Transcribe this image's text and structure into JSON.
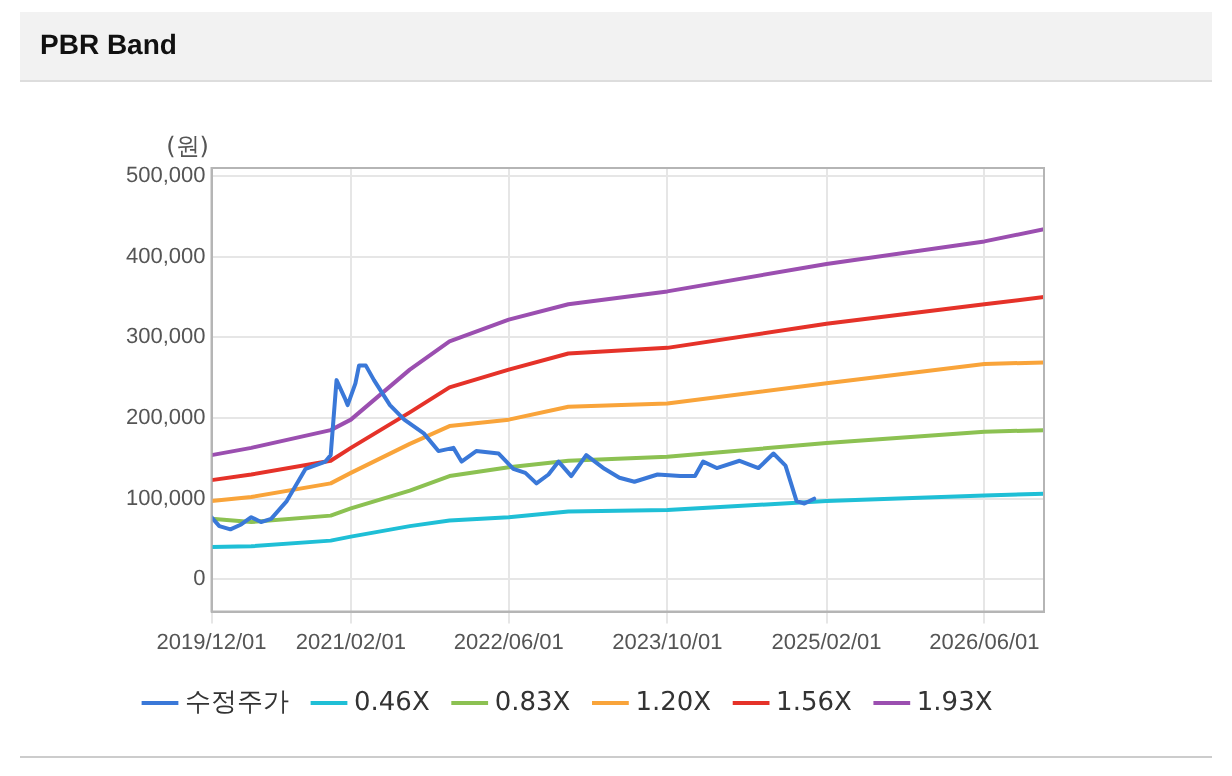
{
  "chart_data": {
    "type": "line",
    "title": "PBR Band",
    "ylabel": "(원)",
    "marker": "none",
    "line_style": "solid",
    "grid": true,
    "legend": "bottom",
    "x": [
      "2019-12-01",
      "2020-04-01",
      "2020-12-01",
      "2021-02-01",
      "2021-08-01",
      "2021-12-01",
      "2022-06-01",
      "2022-12-01",
      "2023-10-01",
      "2025-02-01",
      "2026-06-01",
      "2026-12-01"
    ],
    "xlim": [
      "2019-12-01",
      "2026-12-01"
    ],
    "xticks": [
      {
        "value": "2019-12-01",
        "label": "2019/12/01"
      },
      {
        "value": "2021-02-01",
        "label": "2021/02/01"
      },
      {
        "value": "2022-06-01",
        "label": "2022/06/01"
      },
      {
        "value": "2023-10-01",
        "label": "2023/10/01"
      },
      {
        "value": "2025-02-01",
        "label": "2025/02/01"
      },
      {
        "value": "2026-06-01",
        "label": "2026/06/01"
      }
    ],
    "ylim": [
      -40000,
      510000
    ],
    "yticks": [
      {
        "value": 0,
        "label": "0"
      },
      {
        "value": 100000,
        "label": "100,000"
      },
      {
        "value": 200000,
        "label": "200,000"
      },
      {
        "value": 300000,
        "label": "300,000"
      },
      {
        "value": 400000,
        "label": "400,000"
      },
      {
        "value": 500000,
        "label": "500,000"
      }
    ],
    "series": [
      {
        "name": "수정주가",
        "color": "#3a78d8",
        "x": [
          "2019-12-01",
          "2019-12-25",
          "2020-01-28",
          "2020-03-01",
          "2020-04-01",
          "2020-05-01",
          "2020-06-01",
          "2020-07-19",
          "2020-09-15",
          "2020-11-15",
          "2020-12-01",
          "2020-12-19",
          "2021-01-13",
          "2021-01-22",
          "2021-02-15",
          "2021-02-26",
          "2021-03-19",
          "2021-04-13",
          "2021-06-01",
          "2021-07-15",
          "2021-09-13",
          "2021-10-28",
          "2021-12-13",
          "2022-01-07",
          "2022-02-21",
          "2022-05-01",
          "2022-06-15",
          "2022-07-22",
          "2022-08-25",
          "2022-10-01",
          "2022-11-01",
          "2022-12-10",
          "2023-01-25",
          "2023-03-22",
          "2023-05-07",
          "2023-06-22",
          "2023-09-01",
          "2023-11-10",
          "2023-12-25",
          "2024-01-19",
          "2024-03-01",
          "2024-05-10",
          "2024-07-07",
          "2024-08-22",
          "2024-09-28",
          "2024-11-01",
          "2024-11-25",
          "2024-12-25"
        ],
        "values": [
          77000,
          66000,
          62000,
          68000,
          77000,
          71000,
          75000,
          97000,
          137000,
          146000,
          154000,
          247000,
          225000,
          216000,
          243000,
          265000,
          265000,
          247000,
          216000,
          198000,
          181000,
          159000,
          163000,
          146000,
          159000,
          156000,
          137000,
          132000,
          119000,
          130000,
          146000,
          128000,
          154000,
          137000,
          126000,
          121000,
          130000,
          128000,
          128000,
          146000,
          138000,
          147000,
          138000,
          156000,
          141000,
          97000,
          94000,
          100000
        ]
      },
      {
        "name": "0.46X",
        "color": "#1fbfd6",
        "values": [
          40000,
          41000,
          48000,
          53000,
          66000,
          73000,
          77000,
          84000,
          86000,
          97000,
          104000,
          106000
        ]
      },
      {
        "name": "0.83X",
        "color": "#8cc152",
        "values": [
          75000,
          71000,
          79000,
          88000,
          110000,
          128000,
          139000,
          147000,
          152000,
          169000,
          183000,
          185000
        ]
      },
      {
        "name": "1.20X",
        "color": "#f9a43a",
        "values": [
          97000,
          102000,
          119000,
          132000,
          168000,
          190000,
          198000,
          214000,
          218000,
          243000,
          267000,
          269000
        ]
      },
      {
        "name": "1.56X",
        "color": "#e53229",
        "values": [
          123000,
          130000,
          147000,
          163000,
          207000,
          238000,
          260000,
          280000,
          287000,
          317000,
          341000,
          350000
        ]
      },
      {
        "name": "1.93X",
        "color": "#9b4fb0",
        "values": [
          154000,
          163000,
          185000,
          198000,
          260000,
          295000,
          322000,
          341000,
          357000,
          391000,
          419000,
          434000
        ]
      }
    ]
  }
}
